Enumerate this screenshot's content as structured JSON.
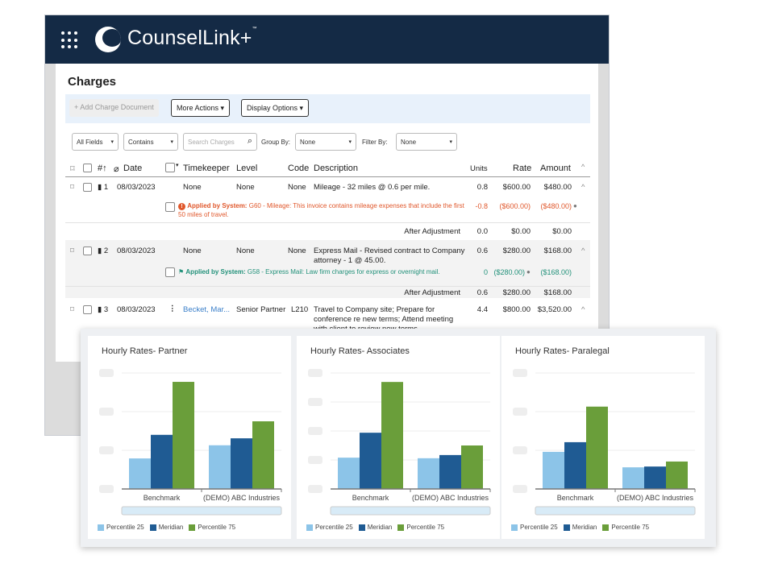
{
  "app": {
    "brand": "CounselLink+",
    "trademark": "™"
  },
  "page": {
    "title": "Charges"
  },
  "toolbar": {
    "add": "+ Add Charge Document",
    "more": "More Actions",
    "display": "Display Options"
  },
  "filters": {
    "field": "All Fields",
    "op": "Contains",
    "search_placeholder": "Search Charges",
    "group_label": "Group By:",
    "group_value": "None",
    "filter_label": "Filter By:",
    "filter_value": "None"
  },
  "columns": {
    "num": "#↑",
    "date": "Date",
    "timekeeper": "Timekeeper",
    "level": "Level",
    "code": "Code",
    "description": "Description",
    "units": "Units",
    "rate": "Rate",
    "amount": "Amount"
  },
  "rows": [
    {
      "num": "1",
      "date": "08/03/2023",
      "timekeeper": "None",
      "level": "None",
      "code": "None",
      "desc": "Mileage - 32 miles @ 0.6 per mile.",
      "desc2": "",
      "units": "0.8",
      "rate": "$600.00",
      "amount": "$480.00",
      "adj": {
        "prefix": "Applied by System:",
        "text": "G60 - Mileage: This invoice contains mileage expenses that include the",
        "text2": "first 50 miles of travel.",
        "units": "-0.8",
        "rate": "($600.00)",
        "amount": "($480.00)"
      },
      "after": {
        "label": "After Adjustment",
        "units": "0.0",
        "rate": "$0.00",
        "amount": "$0.00"
      }
    },
    {
      "num": "2",
      "date": "08/03/2023",
      "timekeeper": "None",
      "level": "None",
      "code": "None",
      "desc": "Express Mail - Revised contract to Company",
      "desc2": "attorney - 1 @ 45.00.",
      "units": "0.6",
      "rate": "$280.00",
      "amount": "$168.00",
      "adj": {
        "prefix": "Applied by System:",
        "text": "G58 - Express Mail: Law firm charges for express or overnight mail.",
        "text2": "",
        "units": "0",
        "rate": "($280.00)",
        "amount": "($168.00)"
      },
      "after": {
        "label": "After Adjustment",
        "units": "0.6",
        "rate": "$280.00",
        "amount": "$168.00"
      }
    },
    {
      "num": "3",
      "date": "08/03/2023",
      "timekeeper": "Becket, Mar...",
      "level": "Senior Partner",
      "code": "L210",
      "desc": "Travel to Company site; Prepare for conference re new",
      "desc2": "terms; Attend meeting with client to review new terms.",
      "units": "4.4",
      "rate": "$800.00",
      "amount": "$3,520.00"
    }
  ],
  "chart_data": [
    {
      "type": "bar",
      "title": "Hourly Rates- Partner",
      "categories": [
        "Benchmark",
        "(DEMO) ABC Industries"
      ],
      "ylim": [
        0,
        3
      ],
      "grid": true,
      "series": [
        {
          "name": "Percentile 25",
          "color": "#8cc4e8",
          "values": [
            0.79,
            1.13
          ]
        },
        {
          "name": "Meridian",
          "color": "#1f5b93",
          "values": [
            1.4,
            1.31
          ]
        },
        {
          "name": "Percentile 75",
          "color": "#6a9e3a",
          "values": [
            2.77,
            1.75
          ]
        }
      ]
    },
    {
      "type": "bar",
      "title": "Hourly Rates- Associates",
      "categories": [
        "Benchmark",
        "(DEMO) ABC Industries"
      ],
      "ylim": [
        0,
        4
      ],
      "grid": true,
      "series": [
        {
          "name": "Percentile 25",
          "color": "#8cc4e8",
          "values": [
            1.08,
            1.06
          ]
        },
        {
          "name": "Meridian",
          "color": "#1f5b93",
          "values": [
            1.94,
            1.17
          ]
        },
        {
          "name": "Percentile 75",
          "color": "#6a9e3a",
          "values": [
            3.69,
            1.5
          ]
        }
      ]
    },
    {
      "type": "bar",
      "title": "Hourly Rates- Paralegal",
      "categories": [
        "Benchmark",
        "(DEMO) ABC Industries"
      ],
      "ylim": [
        0,
        3
      ],
      "grid": true,
      "series": [
        {
          "name": "Percentile 25",
          "color": "#8cc4e8",
          "values": [
            0.96,
            0.56
          ]
        },
        {
          "name": "Meridian",
          "color": "#1f5b93",
          "values": [
            1.21,
            0.58
          ]
        },
        {
          "name": "Percentile 75",
          "color": "#6a9e3a",
          "values": [
            2.13,
            0.71
          ]
        }
      ]
    }
  ]
}
